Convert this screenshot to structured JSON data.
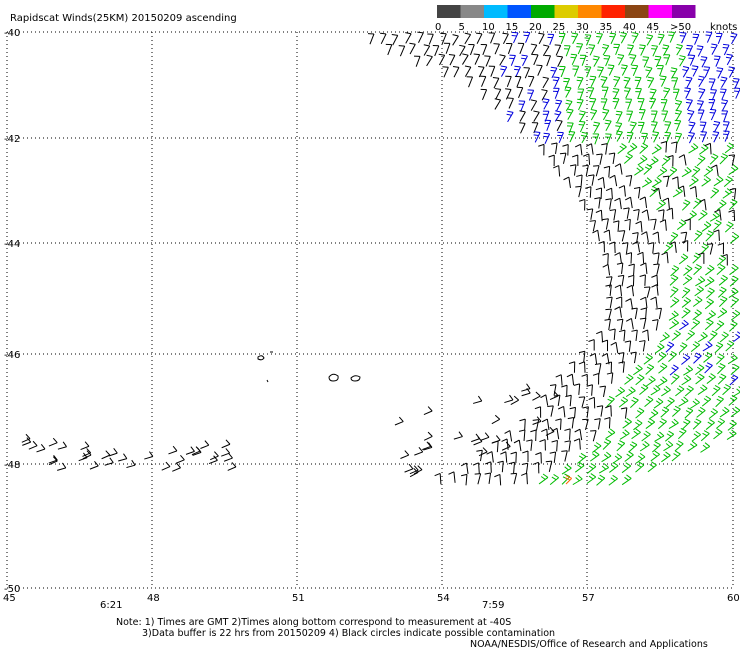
{
  "title": "Rapidscat Winds(25KM) 20150209 ascending",
  "legend": {
    "unit": "knots",
    "labels": [
      "0",
      "5",
      "10",
      "15",
      "20",
      "25",
      "30",
      "35",
      "40",
      "45",
      ">50"
    ],
    "colors": [
      "#444444",
      "#888888",
      "#00bbff",
      "#0055ff",
      "#00aa00",
      "#ddcc00",
      "#ff8800",
      "#ff2200",
      "#8b4513",
      "#ff00ff",
      "#8800aa"
    ]
  },
  "axes": {
    "lon_labels": [
      "45",
      "48",
      "51",
      "54",
      "57",
      "60"
    ],
    "lat_labels": [
      "-40",
      "-42",
      "-44",
      "-46",
      "-48",
      "-50"
    ]
  },
  "times": [
    "6:21",
    "7:59"
  ],
  "notes": {
    "line1": "Note: 1) Times are GMT 2)Times along bottom correspond to measurement at -40S",
    "line2": "3)Data buffer is 22 hrs from 20150209 4) Black circles indicate possible contamination",
    "credit": "NOAA/NESDIS/Office of Research and Applications"
  },
  "colors": {
    "barb_black": "#000000",
    "barb_green": "#00bb00",
    "barb_blue": "#0000dd",
    "barb_orange": "#ff6600",
    "time_label": "#660088",
    "grid": "#000000"
  }
}
